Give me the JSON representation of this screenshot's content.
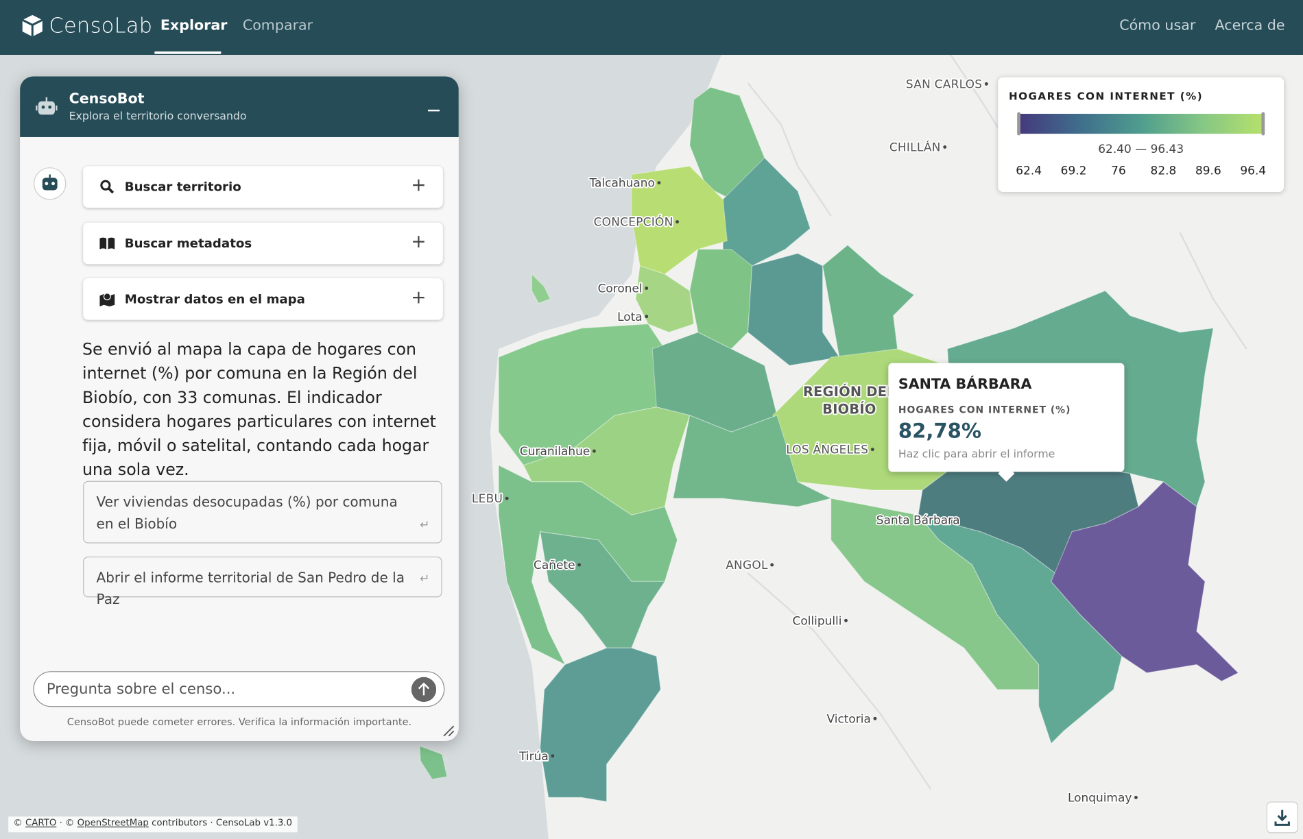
{
  "nav": {
    "brand": "CensoLab",
    "tabs": [
      "Explorar",
      "Comparar"
    ],
    "links": [
      "Cómo usar",
      "Acerca de"
    ]
  },
  "chat": {
    "title": "CensoBot",
    "subtitle": "Explora el territorio conversando",
    "tools": [
      "Buscar territorio",
      "Buscar metadatos",
      "Mostrar datos en el mapa"
    ],
    "message": "Se envió al mapa la capa de hogares con internet (%) por comuna en la Región del Biobío, con 33 comunas. El indicador considera hogares particulares con internet fija, móvil o satelital, contando cada hogar una sola vez.",
    "suggestions": [
      "Ver viviendas desocupadas (%) por comuna en el Biobío",
      "Abrir el informe territorial de San Pedro de la Paz"
    ],
    "input_placeholder": "Pregunta sobre el censo...",
    "disclaimer": "CensoBot puede cometer errores. Verifica la información importante."
  },
  "legend": {
    "title": "HOGARES CON INTERNET (%)",
    "range": "62.40 — 96.43",
    "ticks": [
      "62.4",
      "69.2",
      "76",
      "82.8",
      "89.6",
      "96.4"
    ]
  },
  "tooltip": {
    "name": "SANTA BÁRBARA",
    "label": "HOGARES CON INTERNET (%)",
    "value": "82,78%",
    "hint": "Haz clic para abrir el informe"
  },
  "map_labels": {
    "places": [
      "SAN CARLOS",
      "CHILLÁN",
      "Talcahuano",
      "CONCEPCIÓN",
      "Coronel",
      "Lota",
      "Curanilahue",
      "LOS ÁNGELES",
      "LEBU",
      "Cañete",
      "Santa Bárbara",
      "ANGOL",
      "Collipulli",
      "Victoria",
      "Tirúa",
      "Lonquimay"
    ],
    "region": [
      "REGIÓN DEL",
      "BIOBÍO"
    ]
  },
  "attribution": {
    "prefix": "©",
    "carto": "CARTO",
    "separator": "· ©",
    "osm": "OpenStreetMap",
    "suffix": "contributors · CensoLab v1.3.0"
  }
}
